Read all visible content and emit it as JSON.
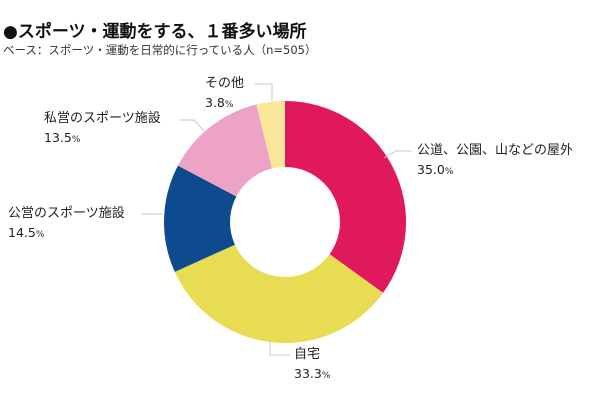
{
  "header": {
    "title": "●スポーツ・運動をする、１番多い場所",
    "subtitle": "ベース：スポーツ・運動を日常的に行っている人（n=505）"
  },
  "labels": [
    {
      "name": "公道、公園、山などの屋外",
      "value": "35.0",
      "unit": "%"
    },
    {
      "name": "自宅",
      "value": "33.3",
      "unit": "%"
    },
    {
      "name": "公営のスポーツ施設",
      "value": "14.5",
      "unit": "%"
    },
    {
      "name": "私営のスポーツ施設",
      "value": "13.5",
      "unit": "%"
    },
    {
      "name": "その他",
      "value": "3.8",
      "unit": "%"
    }
  ],
  "chart_data": {
    "type": "pie",
    "variant": "donut",
    "title": "●スポーツ・運動をする、１番多い場所",
    "subtitle": "ベース：スポーツ・運動を日常的に行っている人（n=505）",
    "categories": [
      "公道、公園、山などの屋外",
      "自宅",
      "公営のスポーツ施設",
      "私営のスポーツ施設",
      "その他"
    ],
    "values": [
      35.0,
      33.3,
      14.5,
      13.5,
      3.8
    ],
    "unit": "%",
    "colors": [
      "#E0195F",
      "#E8DC52",
      "#0E4A8E",
      "#EDA3C6",
      "#F8E79B"
    ],
    "start_angle_deg": 0,
    "direction": "clockwise",
    "legend": "none (leader-line labels)"
  }
}
